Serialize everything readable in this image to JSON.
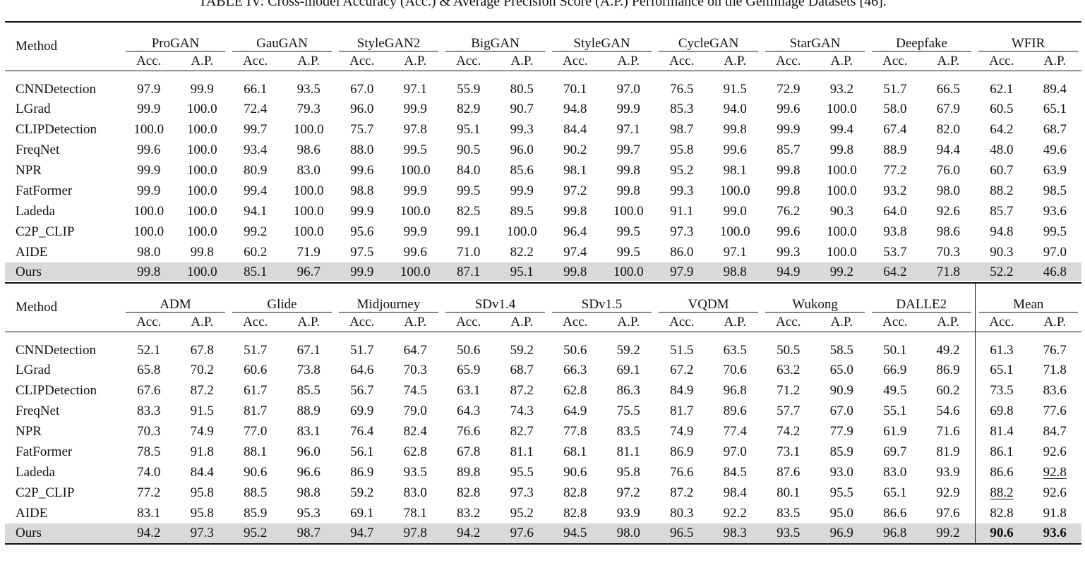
{
  "caption": "TABLE IV: Cross-model Accuracy (Acc.) & Average Precision Score (A.P.) Performance on the GenImage Datasets [46].",
  "method_header": "Method",
  "acc_label": "Acc.",
  "ap_label": "A.P.",
  "top_groups": [
    "ProGAN",
    "GauGAN",
    "StyleGAN2",
    "BigGAN",
    "StyleGAN",
    "CycleGAN",
    "StarGAN",
    "Deepfake",
    "WFIR"
  ],
  "top_rows": [
    {
      "method": "CNNDetection",
      "values": [
        "97.9",
        "99.9",
        "66.1",
        "93.5",
        "67.0",
        "97.1",
        "55.9",
        "80.5",
        "70.1",
        "97.0",
        "76.5",
        "91.5",
        "72.9",
        "93.2",
        "51.7",
        "66.5",
        "62.1",
        "89.4"
      ]
    },
    {
      "method": "LGrad",
      "values": [
        "99.9",
        "100.0",
        "72.4",
        "79.3",
        "96.0",
        "99.9",
        "82.9",
        "90.7",
        "94.8",
        "99.9",
        "85.3",
        "94.0",
        "99.6",
        "100.0",
        "58.0",
        "67.9",
        "60.5",
        "65.1"
      ]
    },
    {
      "method": "CLIPDetection",
      "values": [
        "100.0",
        "100.0",
        "99.7",
        "100.0",
        "75.7",
        "97.8",
        "95.1",
        "99.3",
        "84.4",
        "97.1",
        "98.7",
        "99.8",
        "99.9",
        "99.4",
        "67.4",
        "82.0",
        "64.2",
        "68.7"
      ]
    },
    {
      "method": "FreqNet",
      "values": [
        "99.6",
        "100.0",
        "93.4",
        "98.6",
        "88.0",
        "99.5",
        "90.5",
        "96.0",
        "90.2",
        "99.7",
        "95.8",
        "99.6",
        "85.7",
        "99.8",
        "88.9",
        "94.4",
        "48.0",
        "49.6"
      ]
    },
    {
      "method": "NPR",
      "values": [
        "99.9",
        "100.0",
        "80.9",
        "83.0",
        "99.6",
        "100.0",
        "84.0",
        "85.6",
        "98.1",
        "99.8",
        "95.2",
        "98.1",
        "99.8",
        "100.0",
        "77.2",
        "76.0",
        "60.7",
        "63.9"
      ]
    },
    {
      "method": "FatFormer",
      "values": [
        "99.9",
        "100.0",
        "99.4",
        "100.0",
        "98.8",
        "99.9",
        "99.5",
        "99.9",
        "97.2",
        "99.8",
        "99.3",
        "100.0",
        "99.8",
        "100.0",
        "93.2",
        "98.0",
        "88.2",
        "98.5"
      ]
    },
    {
      "method": "Ladeda",
      "values": [
        "100.0",
        "100.0",
        "94.1",
        "100.0",
        "99.9",
        "100.0",
        "82.5",
        "89.5",
        "99.8",
        "100.0",
        "91.1",
        "99.0",
        "76.2",
        "90.3",
        "64.0",
        "92.6",
        "85.7",
        "93.6"
      ]
    },
    {
      "method": "C2P_CLIP",
      "values": [
        "100.0",
        "100.0",
        "99.2",
        "100.0",
        "95.6",
        "99.9",
        "99.1",
        "100.0",
        "96.4",
        "99.5",
        "97.3",
        "100.0",
        "99.6",
        "100.0",
        "93.8",
        "98.6",
        "94.8",
        "99.5"
      ]
    },
    {
      "method": "AIDE",
      "values": [
        "98.0",
        "99.8",
        "60.2",
        "71.9",
        "97.5",
        "99.6",
        "71.0",
        "82.2",
        "97.4",
        "99.5",
        "86.0",
        "97.1",
        "99.3",
        "100.0",
        "53.7",
        "70.3",
        "90.3",
        "97.0"
      ]
    },
    {
      "method": "Ours",
      "values": [
        "99.8",
        "100.0",
        "85.1",
        "96.7",
        "99.9",
        "100.0",
        "87.1",
        "95.1",
        "99.8",
        "100.0",
        "97.9",
        "98.8",
        "94.9",
        "99.2",
        "64.2",
        "71.8",
        "52.2",
        "46.8"
      ]
    }
  ],
  "bottom_groups": [
    "ADM",
    "Glide",
    "Midjourney",
    "SDv1.4",
    "SDv1.5",
    "VQDM",
    "Wukong",
    "DALLE2",
    "Mean"
  ],
  "bottom_rows": [
    {
      "method": "CNNDetection",
      "values": [
        "52.1",
        "67.8",
        "51.7",
        "67.1",
        "51.7",
        "64.7",
        "50.6",
        "59.2",
        "50.6",
        "59.2",
        "51.5",
        "63.5",
        "50.5",
        "58.5",
        "50.1",
        "49.2",
        "61.3",
        "76.7"
      ]
    },
    {
      "method": "LGrad",
      "values": [
        "65.8",
        "70.2",
        "60.6",
        "73.8",
        "64.6",
        "70.3",
        "65.9",
        "68.7",
        "66.3",
        "69.1",
        "67.2",
        "70.6",
        "63.2",
        "65.0",
        "66.9",
        "86.9",
        "65.1",
        "71.8"
      ]
    },
    {
      "method": "CLIPDetection",
      "values": [
        "67.6",
        "87.2",
        "61.7",
        "85.5",
        "56.7",
        "74.5",
        "63.1",
        "87.2",
        "62.8",
        "86.3",
        "84.9",
        "96.8",
        "71.2",
        "90.9",
        "49.5",
        "60.2",
        "73.5",
        "83.6"
      ]
    },
    {
      "method": "FreqNet",
      "values": [
        "83.3",
        "91.5",
        "81.7",
        "88.9",
        "69.9",
        "79.0",
        "64.3",
        "74.3",
        "64.9",
        "75.5",
        "81.7",
        "89.6",
        "57.7",
        "67.0",
        "55.1",
        "54.6",
        "69.8",
        "77.6"
      ]
    },
    {
      "method": "NPR",
      "values": [
        "70.3",
        "74.9",
        "77.0",
        "83.1",
        "76.4",
        "82.4",
        "76.6",
        "82.7",
        "77.8",
        "83.5",
        "74.9",
        "77.4",
        "74.2",
        "77.9",
        "61.9",
        "71.6",
        "81.4",
        "84.7"
      ]
    },
    {
      "method": "FatFormer",
      "values": [
        "78.5",
        "91.8",
        "88.1",
        "96.0",
        "56.1",
        "62.8",
        "67.8",
        "81.1",
        "68.1",
        "81.1",
        "86.9",
        "97.0",
        "73.1",
        "85.9",
        "69.7",
        "81.9",
        "86.1",
        "92.6"
      ]
    },
    {
      "method": "Ladeda",
      "values": [
        "74.0",
        "84.4",
        "90.6",
        "96.6",
        "86.9",
        "93.5",
        "89.8",
        "95.5",
        "90.6",
        "95.8",
        "76.6",
        "84.5",
        "87.6",
        "93.0",
        "83.0",
        "93.9",
        "86.6",
        "92.8"
      ]
    },
    {
      "method": "C2P_CLIP",
      "values": [
        "77.2",
        "95.8",
        "88.5",
        "98.8",
        "59.2",
        "83.0",
        "82.8",
        "97.3",
        "82.8",
        "97.2",
        "87.2",
        "98.4",
        "80.1",
        "95.5",
        "65.1",
        "92.9",
        "88.2",
        "92.6"
      ]
    },
    {
      "method": "AIDE",
      "values": [
        "83.1",
        "95.8",
        "85.9",
        "95.3",
        "69.1",
        "78.1",
        "83.2",
        "95.2",
        "82.8",
        "93.9",
        "80.3",
        "92.2",
        "83.5",
        "95.0",
        "86.6",
        "97.6",
        "82.8",
        "91.8"
      ]
    },
    {
      "method": "Ours",
      "values": [
        "94.2",
        "97.3",
        "95.2",
        "98.7",
        "94.7",
        "97.8",
        "94.2",
        "97.6",
        "94.5",
        "98.0",
        "96.5",
        "98.3",
        "93.5",
        "96.9",
        "96.8",
        "99.2",
        "90.6",
        "93.6"
      ]
    }
  ],
  "highlight": {
    "bold": [
      [
        9,
        16
      ],
      [
        9,
        17
      ]
    ],
    "underline": [
      [
        6,
        17
      ],
      [
        7,
        16
      ]
    ]
  }
}
